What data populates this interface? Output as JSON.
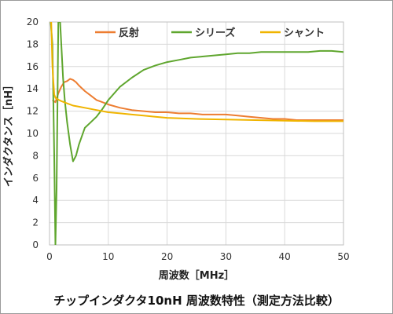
{
  "chart_data": {
    "type": "line",
    "title": "",
    "caption": "チップインダクタ10nH 周波数特性（測定方法比較）",
    "xlabel": "周波数［MHz］",
    "ylabel": "インダクタンス［nH］",
    "xlim": [
      0,
      50
    ],
    "ylim": [
      0,
      20
    ],
    "xticks": [
      0,
      10,
      20,
      30,
      40,
      50
    ],
    "yticks": [
      0,
      2,
      4,
      6,
      8,
      10,
      12,
      14,
      16,
      18,
      20
    ],
    "grid": true,
    "legend_position": "top",
    "series": [
      {
        "name": "反射",
        "color": "#ed7d31",
        "x": [
          0.5,
          1.0,
          1.5,
          2,
          2.5,
          3,
          3.5,
          4,
          4.5,
          5,
          6,
          7,
          8,
          9,
          10,
          12,
          14,
          16,
          18,
          20,
          22,
          24,
          26,
          28,
          30,
          32,
          34,
          36,
          38,
          40,
          42,
          44,
          46,
          48,
          50
        ],
        "values": [
          13.0,
          12.8,
          13.6,
          14.2,
          14.6,
          14.7,
          14.9,
          14.8,
          14.6,
          14.3,
          13.8,
          13.4,
          13.0,
          12.8,
          12.6,
          12.3,
          12.1,
          12.0,
          11.9,
          11.9,
          11.8,
          11.8,
          11.7,
          11.7,
          11.7,
          11.6,
          11.5,
          11.4,
          11.3,
          11.3,
          11.2,
          11.2,
          11.2,
          11.2,
          11.2
        ]
      },
      {
        "name": "シリーズ",
        "color": "#5fa62e",
        "x": [
          0.2,
          0.5,
          0.8,
          1.0,
          1.2,
          1.5,
          1.8,
          2.0,
          2.3,
          2.6,
          3.0,
          3.5,
          4.0,
          4.5,
          5.0,
          6,
          7,
          8,
          9,
          10,
          12,
          14,
          16,
          18,
          20,
          22,
          24,
          26,
          28,
          30,
          32,
          34,
          36,
          38,
          40,
          42,
          44,
          46,
          48,
          50
        ],
        "values": [
          20,
          18,
          8,
          0,
          5,
          20,
          20,
          18,
          15,
          13,
          11,
          9,
          7.5,
          8.0,
          9.0,
          10.5,
          11.0,
          11.5,
          12.2,
          13.0,
          14.2,
          15.0,
          15.7,
          16.1,
          16.4,
          16.6,
          16.8,
          16.9,
          17.0,
          17.1,
          17.2,
          17.2,
          17.3,
          17.3,
          17.3,
          17.3,
          17.3,
          17.4,
          17.4,
          17.3
        ]
      },
      {
        "name": "シャント",
        "color": "#f0b400",
        "x": [
          0.1,
          0.3,
          0.5,
          0.8,
          1.0,
          1.3,
          1.6,
          2,
          3,
          4,
          5,
          6,
          8,
          10,
          12,
          14,
          16,
          18,
          20,
          25,
          30,
          35,
          40,
          45,
          50
        ],
        "values": [
          20,
          20,
          16,
          13.5,
          13.2,
          13.1,
          13.0,
          12.9,
          12.7,
          12.5,
          12.4,
          12.3,
          12.1,
          11.9,
          11.8,
          11.7,
          11.6,
          11.5,
          11.4,
          11.3,
          11.25,
          11.2,
          11.15,
          11.1,
          11.1
        ]
      }
    ]
  }
}
